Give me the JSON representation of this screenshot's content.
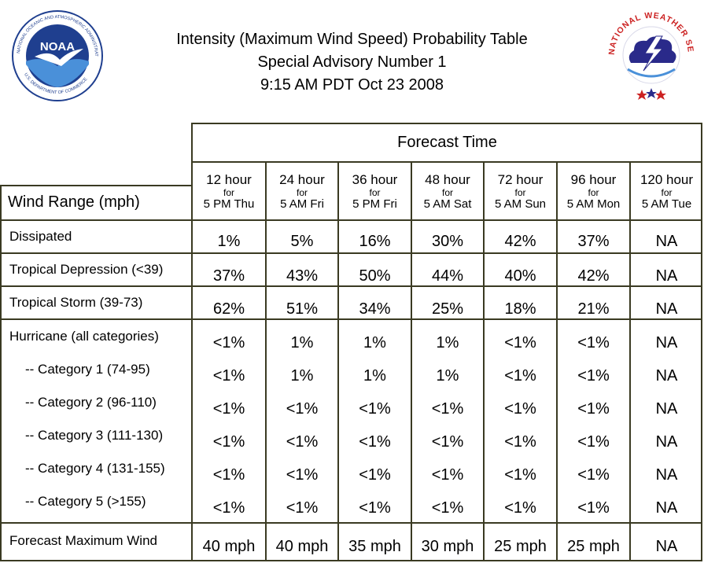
{
  "header": {
    "title_line1": "Intensity (Maximum Wind Speed) Probability Table",
    "title_line2": "Special Advisory Number 1",
    "title_line3": "9:15 AM PDT Oct 23 2008"
  },
  "logos": {
    "noaa": {
      "icon": "noaa-logo",
      "text": "NOAA",
      "ring_text": "NATIONAL OCEANIC AND ATMOSPHERIC ADMINISTRATION",
      "bottom_text": "U.S. DEPARTMENT OF COMMERCE"
    },
    "nws": {
      "icon": "nws-logo",
      "ring_text": "NATIONAL WEATHER SERVICE"
    }
  },
  "table": {
    "forecast_time_label": "Forecast Time",
    "wind_range_label": "Wind Range (mph)",
    "columns": [
      {
        "hours": "12 hour",
        "for": "for",
        "when": "5 PM Thu"
      },
      {
        "hours": "24 hour",
        "for": "for",
        "when": "5 AM Fri"
      },
      {
        "hours": "36 hour",
        "for": "for",
        "when": "5 PM Fri"
      },
      {
        "hours": "48 hour",
        "for": "for",
        "when": "5 AM Sat"
      },
      {
        "hours": "72 hour",
        "for": "for",
        "when": "5 AM Sun"
      },
      {
        "hours": "96 hour",
        "for": "for",
        "when": "5 AM Mon"
      },
      {
        "hours": "120 hour",
        "for": "for",
        "when": "5 AM Tue"
      }
    ],
    "rows": [
      {
        "label": "Dissipated",
        "values": [
          "1%",
          "5%",
          "16%",
          "30%",
          "42%",
          "37%",
          "NA"
        ]
      },
      {
        "label": "Tropical Depression (<39)",
        "values": [
          "37%",
          "43%",
          "50%",
          "44%",
          "40%",
          "42%",
          "NA"
        ]
      },
      {
        "label": "Tropical Storm (39-73)",
        "values": [
          "62%",
          "51%",
          "34%",
          "25%",
          "18%",
          "21%",
          "NA"
        ]
      },
      {
        "label": "Hurricane (all categories)",
        "values": [
          "<1%",
          "1%",
          "1%",
          "1%",
          "<1%",
          "<1%",
          "NA"
        ]
      },
      {
        "label": "-- Category 1 (74-95)",
        "values": [
          "<1%",
          "1%",
          "1%",
          "1%",
          "<1%",
          "<1%",
          "NA"
        ]
      },
      {
        "label": "-- Category 2 (96-110)",
        "values": [
          "<1%",
          "<1%",
          "<1%",
          "<1%",
          "<1%",
          "<1%",
          "NA"
        ]
      },
      {
        "label": "-- Category 3 (111-130)",
        "values": [
          "<1%",
          "<1%",
          "<1%",
          "<1%",
          "<1%",
          "<1%",
          "NA"
        ]
      },
      {
        "label": "-- Category 4 (131-155)",
        "values": [
          "<1%",
          "<1%",
          "<1%",
          "<1%",
          "<1%",
          "<1%",
          "NA"
        ]
      },
      {
        "label": "-- Category 5 (>155)",
        "values": [
          "<1%",
          "<1%",
          "<1%",
          "<1%",
          "<1%",
          "<1%",
          "NA"
        ]
      },
      {
        "label": "Forecast Maximum Wind",
        "values": [
          "40 mph",
          "40 mph",
          "35 mph",
          "30 mph",
          "25 mph",
          "25 mph",
          "NA"
        ]
      }
    ]
  },
  "colors": {
    "border": "#3a3a22",
    "noaa_blue": "#1f3f8f",
    "nws_red": "#cc2222"
  }
}
